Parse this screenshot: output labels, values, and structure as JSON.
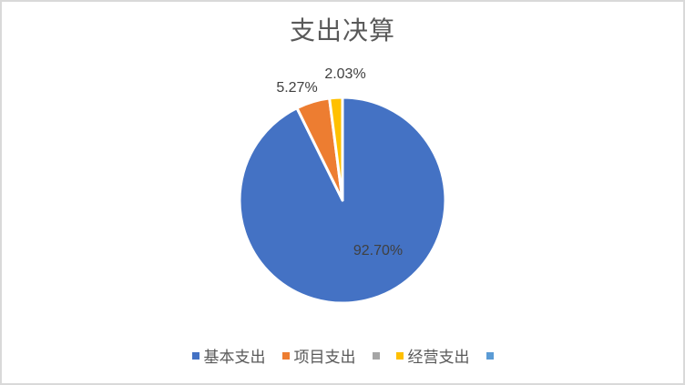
{
  "chart": {
    "title": "支出决算",
    "background_color": "#FFFFFF",
    "border_color": "#D9D9D9",
    "title_color": "#595959",
    "label_color": "#404040"
  },
  "chart_data": {
    "type": "pie",
    "title": "支出决算",
    "categories": [
      "基本支出",
      "项目支出",
      "",
      "经营支出",
      ""
    ],
    "values": [
      92.7,
      5.27,
      0,
      2.03,
      0
    ],
    "data_labels": [
      "92.70%",
      "5.27%",
      "",
      "2.03%",
      ""
    ],
    "colors": [
      "#4472C4",
      "#ED7D31",
      "#A5A5A5",
      "#FFC000",
      "#5B9BD5"
    ],
    "slice_border_color": "#FFFFFF",
    "start_angle_deg": 0,
    "direction": "clockwise",
    "legend_position": "bottom"
  },
  "legend": {
    "items": [
      {
        "label": "基本支出",
        "color": "#4472C4"
      },
      {
        "label": "项目支出",
        "color": "#ED7D31"
      },
      {
        "label": "",
        "color": "#A5A5A5"
      },
      {
        "label": "经营支出",
        "color": "#FFC000"
      },
      {
        "label": "",
        "color": "#5B9BD5"
      }
    ]
  }
}
